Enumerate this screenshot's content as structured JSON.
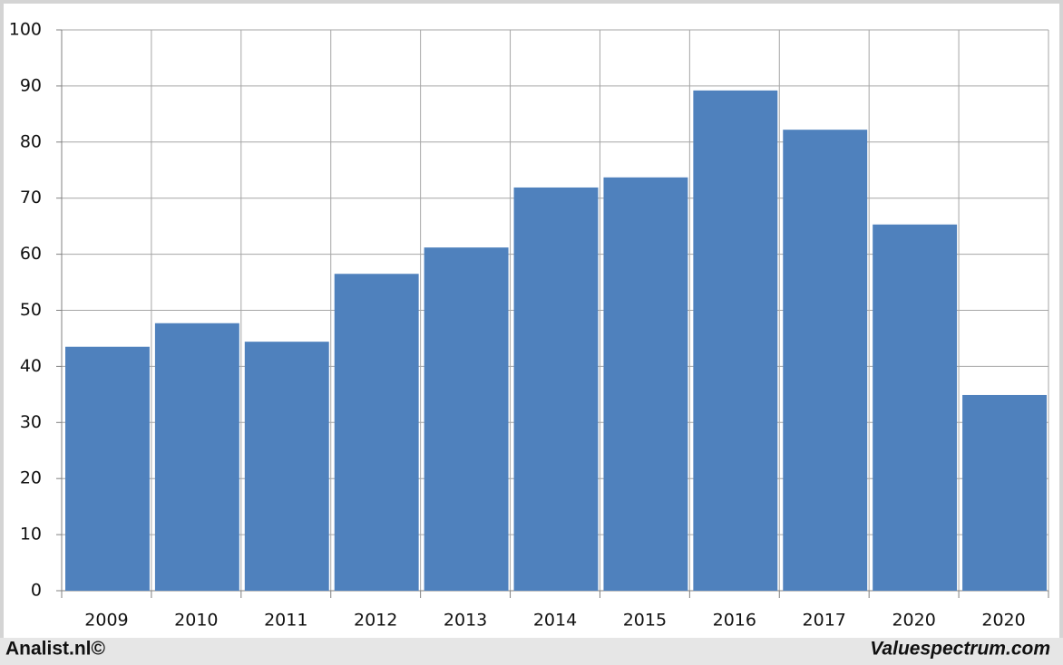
{
  "chart_data": {
    "type": "bar",
    "categories": [
      "2009",
      "2010",
      "2011",
      "2012",
      "2013",
      "2014",
      "2015",
      "2016",
      "2017",
      "2020",
      "2020"
    ],
    "values": [
      43.5,
      47.7,
      44.4,
      56.5,
      61.2,
      71.9,
      73.7,
      89.2,
      82.2,
      65.3,
      34.9
    ],
    "color": "#4f81bd",
    "ylim": [
      0,
      100
    ],
    "yticks": [
      0,
      10,
      20,
      30,
      40,
      50,
      60,
      70,
      80,
      90,
      100
    ],
    "grid": true,
    "annotations": [
      "Analist.nl©",
      "Valuespectrum.com"
    ]
  }
}
